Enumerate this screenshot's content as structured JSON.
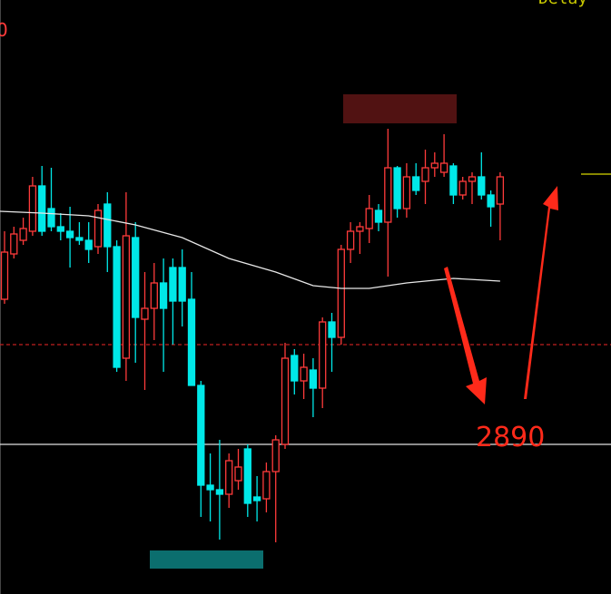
{
  "chart_data": {
    "type": "candlestick",
    "top_left_label": "0",
    "top_right_label": "Delay",
    "annotation": "2890",
    "ylim": [
      2857,
      2988
    ],
    "up_color": "#ff3b3b",
    "down_color": "#00e8e8",
    "candles": {
      "open": [
        2922,
        2932,
        2935,
        2937,
        2947,
        2942,
        2938,
        2937,
        2935.6,
        2935,
        2933.6,
        2943,
        2933.6,
        2909,
        2935.6,
        2917.6,
        2920,
        2925.6,
        2929,
        2929,
        2922,
        2903,
        2881,
        2880,
        2879,
        2882,
        2889,
        2878.4,
        2878,
        2884,
        2890,
        2909.6,
        2904,
        2906.4,
        2902.4,
        2917,
        2913.6,
        2933,
        2937,
        2937.6,
        2941.6,
        2939,
        2951,
        2942,
        2949,
        2948,
        2951,
        2950,
        2951.4,
        2945,
        2948,
        2949,
        2945,
        2943
      ],
      "close": [
        2932.4,
        2936.4,
        2937.6,
        2947,
        2937,
        2938,
        2937,
        2935.6,
        2935,
        2933,
        2941.6,
        2933.6,
        2907,
        2936,
        2918,
        2920,
        2925.6,
        2920,
        2921.6,
        2921.6,
        2903,
        2881,
        2880,
        2879,
        2886.4,
        2885,
        2877,
        2877.6,
        2884,
        2891,
        2909,
        2904,
        2907,
        2902.4,
        2917,
        2913.6,
        2933,
        2937,
        2938,
        2942,
        2939,
        2951,
        2942,
        2949,
        2946,
        2951,
        2952,
        2952,
        2945,
        2948,
        2949,
        2945,
        2942.4,
        2949
      ],
      "high": [
        2937,
        2938,
        2940,
        2949,
        2951.4,
        2951,
        2941,
        2942.4,
        2939,
        2939,
        2943,
        2945.6,
        2935,
        2945.6,
        2939,
        2928,
        2930,
        2931,
        2931,
        2933,
        2928,
        2904,
        2888,
        2891,
        2888,
        2889,
        2890,
        2883,
        2886,
        2892,
        2912.4,
        2911,
        2910,
        2909,
        2918,
        2919,
        2934,
        2939,
        2939,
        2945,
        2943,
        2959.6,
        2951.4,
        2952,
        2952,
        2955,
        2954.4,
        2958.4,
        2952,
        2949,
        2950,
        2954.4,
        2946,
        2950
      ],
      "low": [
        2921,
        2931,
        2934,
        2936,
        2936,
        2937,
        2935,
        2929,
        2934,
        2930,
        2932,
        2928,
        2906,
        2904,
        2908,
        2902,
        2913,
        2906,
        2912,
        2916,
        2903,
        2874,
        2873,
        2869,
        2876,
        2880,
        2874,
        2873,
        2875,
        2868.4,
        2889,
        2901,
        2900,
        2896,
        2898,
        2906,
        2912,
        2930,
        2932,
        2934.4,
        2937,
        2927,
        2940,
        2940,
        2945,
        2943,
        2949,
        2949,
        2943,
        2944,
        2943,
        2944,
        2938,
        2935
      ]
    },
    "moving_average": {
      "color": "#e8e8e8",
      "x": [
        0,
        4,
        9,
        14,
        19,
        24,
        29,
        33,
        36,
        39,
        43,
        48,
        53
      ],
      "values": [
        2941.4,
        2941,
        2940.4,
        2938.4,
        2935.6,
        2931,
        2928,
        2925,
        2924.4,
        2924.4,
        2925.6,
        2926.6,
        2926
      ]
    },
    "levels": [
      {
        "value": 2890,
        "color": "#e0e0e0",
        "style": "solid"
      },
      {
        "value": 2912,
        "color": "#c02020",
        "style": "dashed"
      },
      {
        "value": 2949.6,
        "color": "#d8d800",
        "style": "short"
      }
    ]
  }
}
